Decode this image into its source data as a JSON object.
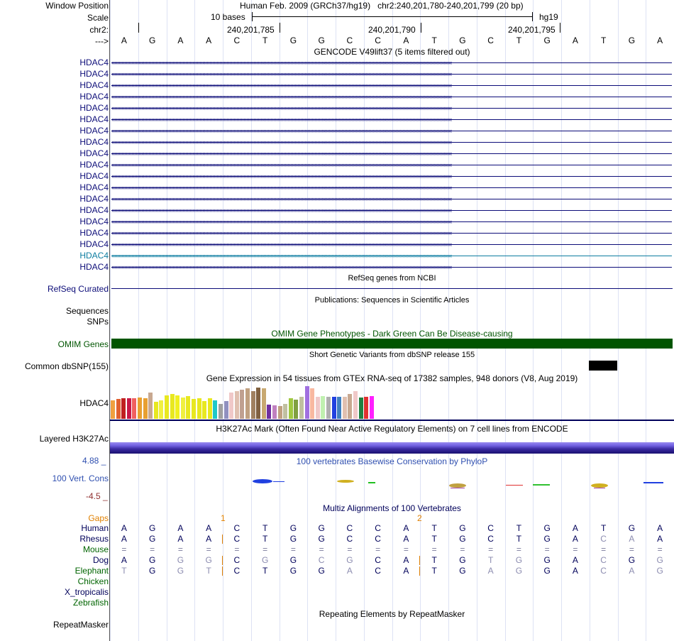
{
  "header": {
    "window_position_label": "Window Position",
    "assembly": "Human Feb. 2009 (GRCh37/hg19)",
    "position": "chr2:240,201,780-240,201,799 (20 bp)",
    "scale_label": "Scale",
    "scale_bar_text": "10 bases",
    "scale_db": "hg19",
    "chrom_label": "chr2:",
    "coords": [
      "240,201,785",
      "240,201,790",
      "240,201,795"
    ],
    "strand_label": "--->"
  },
  "sequence": [
    "A",
    "G",
    "A",
    "A",
    "C",
    "T",
    "G",
    "G",
    "C",
    "C",
    "A",
    "T",
    "G",
    "C",
    "T",
    "G",
    "A",
    "T",
    "G",
    "A"
  ],
  "gencode": {
    "title": "GENCODE V49lift37 (5 items filtered out)",
    "genes": [
      "HDAC4",
      "HDAC4",
      "HDAC4",
      "HDAC4",
      "HDAC4",
      "HDAC4",
      "HDAC4",
      "HDAC4",
      "HDAC4",
      "HDAC4",
      "HDAC4",
      "HDAC4",
      "HDAC4",
      "HDAC4",
      "HDAC4",
      "HDAC4",
      "HDAC4",
      "HDAC4",
      "HDAC4"
    ],
    "gene_colors": [
      "#0c0c78",
      "#0c0c78",
      "#0c0c78",
      "#0c0c78",
      "#0c0c78",
      "#0c0c78",
      "#0c0c78",
      "#0c0c78",
      "#0c0c78",
      "#0c0c78",
      "#0c0c78",
      "#0c0c78",
      "#0c0c78",
      "#0c0c78",
      "#0c0c78",
      "#0c0c78",
      "#0c0c78",
      "#0c7ca0",
      "#0c0c78"
    ]
  },
  "refseq": {
    "title": "RefSeq genes from NCBI",
    "label": "RefSeq Curated"
  },
  "publications": {
    "title": "Publications: Sequences in Scientific Articles",
    "sequences_label": "Sequences",
    "snps_label": "SNPs"
  },
  "omim": {
    "title": "OMIM Gene Phenotypes - Dark Green Can Be Disease-causing",
    "label": "OMIM Genes",
    "color": "#005500"
  },
  "dbsnp": {
    "title": "Short Genetic Variants from dbSNP release 155",
    "label": "Common dbSNP(155)"
  },
  "gtex": {
    "title": "Gene Expression in 54 tissues from GTEx RNA-seq of 17382 samples, 948 donors (V8, Aug 2019)",
    "label": "HDAC4",
    "bar_colors": [
      "#f0a040",
      "#e06030",
      "#c02020",
      "#c81848",
      "#f06060",
      "#e8a030",
      "#e8a030",
      "#c8a890",
      "#e8e820",
      "#f0f040",
      "#e8e820",
      "#e8e820",
      "#f0f020",
      "#f0f040",
      "#e8e820",
      "#e8e820",
      "#e8e820",
      "#e8e820",
      "#e8e820",
      "#20c8c8",
      "#a0a0a0",
      "#9090c0",
      "#f0c8c8",
      "#e0c0b0",
      "#c0a090",
      "#c0a080",
      "#a08060",
      "#806040",
      "#c8a870",
      "#7030a0",
      "#c080c0",
      "#c0a080",
      "#c0c0a0",
      "#a0c840",
      "#80a040",
      "#c0c0a0",
      "#a070e0",
      "#f8b8a0",
      "#f0c8c8",
      "#c0f0b0",
      "#b0b0b0",
      "#2040e0",
      "#4080c0",
      "#e0c0b0",
      "#c8a890",
      "#f0c8c8",
      "#208040",
      "#e03030",
      "#ff20ff"
    ],
    "bar_values": [
      0.52,
      0.55,
      0.58,
      0.58,
      0.58,
      0.6,
      0.58,
      0.74,
      0.48,
      0.52,
      0.66,
      0.7,
      0.66,
      0.6,
      0.64,
      0.56,
      0.58,
      0.5,
      0.58,
      0.52,
      0.42,
      0.5,
      0.74,
      0.78,
      0.82,
      0.86,
      0.78,
      0.88,
      0.86,
      0.4,
      0.38,
      0.36,
      0.42,
      0.58,
      0.54,
      0.62,
      0.92,
      0.86,
      0.62,
      0.64,
      0.62,
      0.62,
      0.62,
      0.62,
      0.7,
      0.78,
      0.6,
      0.62,
      0.64
    ]
  },
  "h3k27ac": {
    "title": "H3K27Ac Mark (Often Found Near Active Regulatory Elements) on 7 cell lines from ENCODE",
    "label": "Layered H3K27Ac"
  },
  "phylop": {
    "title": "100 vertebrates Basewise Conservation by PhyloP",
    "label": "100 Vert. Cons",
    "max": "4.88 _",
    "min": "-4.5 _"
  },
  "multiz": {
    "title": "Multiz Alignments of 100 Vertebrates",
    "gaps_label": "Gaps",
    "gap_markers": [
      "1",
      "2"
    ],
    "species": [
      {
        "name": "Human",
        "color": "#00005a",
        "seq": [
          "A",
          "G",
          "A",
          "A",
          "C",
          "T",
          "G",
          "G",
          "C",
          "C",
          "A",
          "T",
          "G",
          "C",
          "T",
          "G",
          "A",
          "T",
          "G",
          "A"
        ]
      },
      {
        "name": "Rhesus",
        "color": "#00005a",
        "seq": [
          "A",
          "G",
          "A",
          "A",
          "C",
          "T",
          "G",
          "G",
          "C",
          "C",
          "A",
          "T",
          "G",
          "C",
          "T",
          "G",
          "A",
          "C",
          "A",
          "A"
        ]
      },
      {
        "name": "Mouse",
        "color": "#006400",
        "seq": [
          "=",
          "=",
          "=",
          "=",
          "=",
          "=",
          "=",
          "=",
          "=",
          "=",
          "=",
          "=",
          "=",
          "=",
          "=",
          "=",
          "=",
          "=",
          "=",
          "="
        ]
      },
      {
        "name": "Dog",
        "color": "#00005a",
        "seq": [
          "A",
          "G",
          "G",
          "G",
          "C",
          "G",
          "G",
          "C",
          "G",
          "C",
          "A",
          "T",
          "G",
          "T",
          "G",
          "G",
          "A",
          "C",
          "G",
          "G"
        ]
      },
      {
        "name": "Elephant",
        "color": "#006400",
        "seq": [
          "T",
          "G",
          "G",
          "T",
          "C",
          "T",
          "G",
          "G",
          "A",
          "C",
          "A",
          "T",
          "G",
          "A",
          "G",
          "G",
          "A",
          "C",
          "A",
          "G"
        ]
      },
      {
        "name": "Chicken",
        "color": "#006400",
        "seq": []
      },
      {
        "name": "X_tropicalis",
        "color": "#00005a",
        "seq": []
      },
      {
        "name": "Zebrafish",
        "color": "#006400",
        "seq": []
      }
    ]
  },
  "repeatmasker": {
    "title": "Repeating Elements by RepeatMasker",
    "label": "RepeatMasker"
  }
}
